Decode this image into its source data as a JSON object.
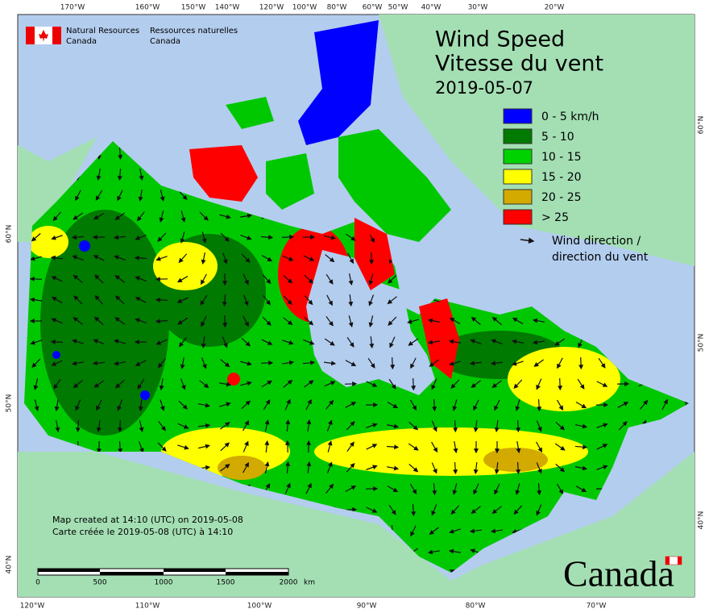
{
  "header": {
    "agency_en": "Natural Resources",
    "country_en": "Canada",
    "agency_fr": "Ressources naturelles",
    "country_fr": "Canada"
  },
  "title": {
    "en": "Wind Speed",
    "fr": "Vitesse du vent",
    "date": "2019-05-07"
  },
  "legend": {
    "items": [
      {
        "label": "0 - 5 km/h",
        "color": "#0000ff"
      },
      {
        "label": "5 - 10",
        "color": "#007a00"
      },
      {
        "label": "10 - 15",
        "color": "#00d200"
      },
      {
        "label": "15 - 20",
        "color": "#ffff00"
      },
      {
        "label": "20 - 25",
        "color": "#d2aa00"
      },
      {
        "label": "> 25",
        "color": "#ff0000"
      }
    ],
    "direction": [
      "Wind direction /",
      "direction du vent"
    ]
  },
  "graticule": {
    "top": [
      "170°W",
      "160°W",
      "150°W",
      "140°W",
      "120°W",
      "100°W",
      "80°W",
      "60°W",
      "50°W",
      "40°W",
      "30°W",
      "20°W"
    ],
    "bottom": [
      "120°W",
      "110°W",
      "100°W",
      "90°W",
      "80°W",
      "70°W"
    ],
    "left": [
      "60°N",
      "50°N",
      "40°N"
    ],
    "right": [
      "60°N",
      "50°N",
      "40°N"
    ]
  },
  "credits": [
    "Map created at 14:10 (UTC) on 2019-05-08",
    "Carte créée le 2019-05-08 (UTC) à 14:10"
  ],
  "scale": {
    "ticks": [
      "0",
      "500",
      "1000",
      "1500",
      "2000"
    ],
    "unit": "km"
  },
  "wordmark": "Canada"
}
